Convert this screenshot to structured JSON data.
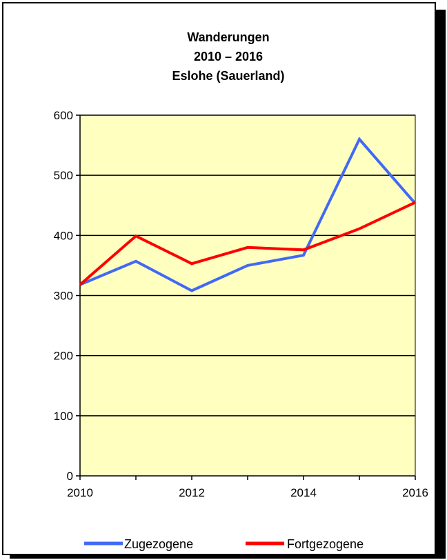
{
  "chart_data": {
    "type": "line",
    "title_lines": [
      "Wanderungen",
      "2010 – 2016",
      "Eslohe (Sauerland)"
    ],
    "x": [
      2010,
      2011,
      2012,
      2013,
      2014,
      2015,
      2016
    ],
    "x_tick_labels": [
      "2010",
      "2012",
      "2014",
      "2016"
    ],
    "xlim": [
      2010,
      2016
    ],
    "ylim": [
      0,
      600
    ],
    "y_ticks": [
      0,
      100,
      200,
      300,
      400,
      500,
      600
    ],
    "grid": true,
    "legend_position": "bottom",
    "plot_background": "#ffffc0",
    "series": [
      {
        "name": "Zugezogene",
        "color": "#4169f5",
        "values": [
          318,
          357,
          308,
          350,
          367,
          560,
          453
        ]
      },
      {
        "name": "Fortgezogene",
        "color": "#ff0000",
        "values": [
          318,
          399,
          353,
          380,
          376,
          411,
          455
        ]
      }
    ]
  }
}
